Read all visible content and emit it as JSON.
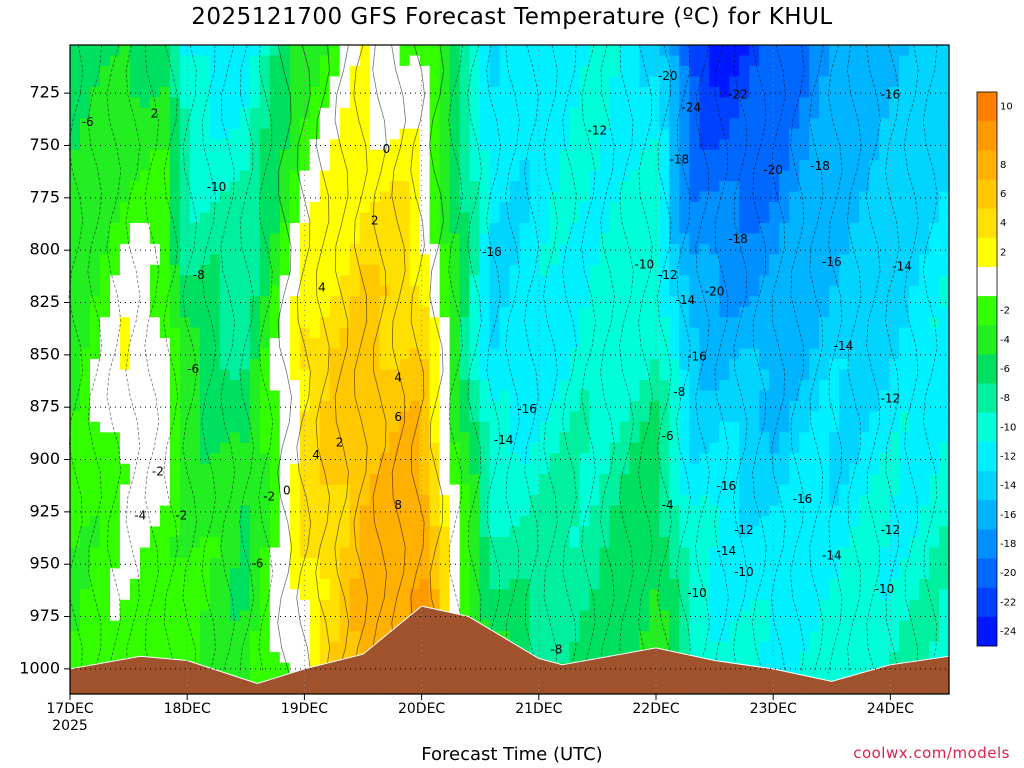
{
  "title": "2025121700 GFS Forecast Temperature (ºC) for KHUL",
  "xlabel": "Forecast Time (UTC)",
  "credit": "coolwx.com/models",
  "chart_data": {
    "type": "heatmap",
    "title": "2025121700 GFS Forecast Temperature (ºC) for KHUL",
    "xlabel": "Forecast Time (UTC)",
    "ylabel": "",
    "y_inverted": true,
    "ylim": [
      1012,
      702
    ],
    "xlim_days": [
      0,
      7.5
    ],
    "x_ticks": [
      {
        "day": 0,
        "label": "17DEC",
        "sublabel": "2025"
      },
      {
        "day": 1,
        "label": "18DEC"
      },
      {
        "day": 2,
        "label": "19DEC"
      },
      {
        "day": 3,
        "label": "20DEC"
      },
      {
        "day": 4,
        "label": "21DEC"
      },
      {
        "day": 5,
        "label": "22DEC"
      },
      {
        "day": 6,
        "label": "23DEC"
      },
      {
        "day": 7,
        "label": "24DEC"
      }
    ],
    "y_ticks": [
      725,
      750,
      775,
      800,
      825,
      850,
      875,
      900,
      925,
      950,
      975,
      1000
    ],
    "grid": true,
    "colorbar": {
      "labels": [
        "10",
        "8",
        "6",
        "4",
        "2",
        "-2",
        "-4",
        "-6",
        "-8",
        "-10",
        "-12",
        "-14",
        "-16",
        "-18",
        "-20",
        "-22",
        "-24"
      ],
      "bins": [
        {
          "color": "#ff8000",
          "label": "10"
        },
        {
          "color": "#ff9a00",
          "label": ""
        },
        {
          "color": "#ffb000",
          "label": "8"
        },
        {
          "color": "#ffc800",
          "label": "6"
        },
        {
          "color": "#ffe000",
          "label": "4"
        },
        {
          "color": "#ffff00",
          "label": "2"
        },
        {
          "color": "#ffffff",
          "label": ""
        },
        {
          "color": "#33ff00",
          "label": "-2"
        },
        {
          "color": "#22ee22",
          "label": "-4"
        },
        {
          "color": "#00e060",
          "label": "-6"
        },
        {
          "color": "#00f0a0",
          "label": "-8"
        },
        {
          "color": "#00ffd8",
          "label": "-10"
        },
        {
          "color": "#00f0ff",
          "label": "-12"
        },
        {
          "color": "#00d4ff",
          "label": "-14"
        },
        {
          "color": "#00b4ff",
          "label": "-16"
        },
        {
          "color": "#0090ff",
          "label": "-18"
        },
        {
          "color": "#0068ff",
          "label": "-20"
        },
        {
          "color": "#0040ff",
          "label": "-22"
        },
        {
          "color": "#0018ff",
          "label": "-24"
        }
      ]
    },
    "temperature_profiles": [
      {
        "day": 0.0,
        "p_top": -7,
        "p850": -5,
        "p925": -4,
        "sfc": -3
      },
      {
        "day": 0.5,
        "p_top": -7,
        "p850": 1,
        "p925": -2,
        "sfc": -3
      },
      {
        "day": 0.8,
        "p_top": -6,
        "p850": -1,
        "p925": -2,
        "sfc": -4
      },
      {
        "day": 1.0,
        "p_top": -13,
        "p850": -6,
        "p925": -4,
        "sfc": -4
      },
      {
        "day": 1.5,
        "p_top": -13,
        "p850": -8,
        "p925": -6,
        "sfc": -5
      },
      {
        "day": 2.0,
        "p_top": -5,
        "p850": 3,
        "p925": 2,
        "sfc": 0
      },
      {
        "day": 2.5,
        "p_top": 0,
        "p850": 5,
        "p925": 6,
        "sfc": 6
      },
      {
        "day": 3.0,
        "p_top": -2,
        "p850": 4,
        "p925": 8,
        "sfc": 10
      },
      {
        "day": 3.3,
        "p_top": -8,
        "p850": -6,
        "p925": -2,
        "sfc": 0
      },
      {
        "day": 3.6,
        "p_top": -14,
        "p850": -14,
        "p925": -10,
        "sfc": -4
      },
      {
        "day": 4.0,
        "p_top": -13,
        "p850": -13,
        "p925": -10,
        "sfc": -8
      },
      {
        "day": 4.5,
        "p_top": -12,
        "p850": -11,
        "p925": -9,
        "sfc": -8
      },
      {
        "day": 5.0,
        "p_top": -14,
        "p850": -10,
        "p925": -6,
        "sfc": -4
      },
      {
        "day": 5.3,
        "p_top": -23,
        "p850": -16,
        "p925": -12,
        "sfc": -10
      },
      {
        "day": 5.6,
        "p_top": -25,
        "p850": -16,
        "p925": -13,
        "sfc": -11
      },
      {
        "day": 6.0,
        "p_top": -22,
        "p850": -17,
        "p925": -14,
        "sfc": -12
      },
      {
        "day": 6.5,
        "p_top": -18,
        "p850": -15,
        "p925": -13,
        "sfc": -11
      },
      {
        "day": 7.0,
        "p_top": -16,
        "p850": -14,
        "p925": -12,
        "sfc": -10
      },
      {
        "day": 7.5,
        "p_top": -15,
        "p850": -12,
        "p925": -11,
        "sfc": -9
      }
    ],
    "surface_pressure": [
      {
        "day": 0.0,
        "p": 1000
      },
      {
        "day": 0.6,
        "p": 994
      },
      {
        "day": 1.0,
        "p": 996
      },
      {
        "day": 1.6,
        "p": 1007
      },
      {
        "day": 2.0,
        "p": 1000
      },
      {
        "day": 2.5,
        "p": 993
      },
      {
        "day": 3.0,
        "p": 970
      },
      {
        "day": 3.4,
        "p": 975
      },
      {
        "day": 4.0,
        "p": 995
      },
      {
        "day": 4.2,
        "p": 998
      },
      {
        "day": 4.7,
        "p": 993
      },
      {
        "day": 5.0,
        "p": 990
      },
      {
        "day": 5.5,
        "p": 996
      },
      {
        "day": 6.0,
        "p": 1000
      },
      {
        "day": 6.5,
        "p": 1006
      },
      {
        "day": 7.0,
        "p": 998
      },
      {
        "day": 7.5,
        "p": 994
      }
    ],
    "contour_labels": [
      {
        "day": 0.15,
        "p": 739,
        "text": "-6"
      },
      {
        "day": 0.72,
        "p": 735,
        "text": "2"
      },
      {
        "day": 1.25,
        "p": 770,
        "text": "-10"
      },
      {
        "day": 2.7,
        "p": 752,
        "text": "0"
      },
      {
        "day": 2.6,
        "p": 786,
        "text": "2"
      },
      {
        "day": 2.15,
        "p": 818,
        "text": "4"
      },
      {
        "day": 1.1,
        "p": 812,
        "text": "-8"
      },
      {
        "day": 1.05,
        "p": 857,
        "text": "-6"
      },
      {
        "day": 2.8,
        "p": 861,
        "text": "4"
      },
      {
        "day": 2.8,
        "p": 880,
        "text": "6"
      },
      {
        "day": 2.3,
        "p": 892,
        "text": "2"
      },
      {
        "day": 2.1,
        "p": 898,
        "text": "4"
      },
      {
        "day": 0.75,
        "p": 906,
        "text": "-2"
      },
      {
        "day": 0.6,
        "p": 927,
        "text": "-4"
      },
      {
        "day": 0.95,
        "p": 927,
        "text": "-2"
      },
      {
        "day": 1.7,
        "p": 918,
        "text": "-2"
      },
      {
        "day": 1.85,
        "p": 915,
        "text": "0"
      },
      {
        "day": 1.6,
        "p": 950,
        "text": "-6"
      },
      {
        "day": 2.8,
        "p": 922,
        "text": "8"
      },
      {
        "day": 3.6,
        "p": 801,
        "text": "-16"
      },
      {
        "day": 3.7,
        "p": 891,
        "text": "-14"
      },
      {
        "day": 3.9,
        "p": 876,
        "text": "-16"
      },
      {
        "day": 4.5,
        "p": 743,
        "text": "-12"
      },
      {
        "day": 5.1,
        "p": 717,
        "text": "-20"
      },
      {
        "day": 5.3,
        "p": 732,
        "text": "-24"
      },
      {
        "day": 5.7,
        "p": 726,
        "text": "-22"
      },
      {
        "day": 5.2,
        "p": 757,
        "text": "-18"
      },
      {
        "day": 6.0,
        "p": 762,
        "text": "-20"
      },
      {
        "day": 6.4,
        "p": 760,
        "text": "-18"
      },
      {
        "day": 5.7,
        "p": 795,
        "text": "-18"
      },
      {
        "day": 4.9,
        "p": 807,
        "text": "-10"
      },
      {
        "day": 5.1,
        "p": 812,
        "text": "-12"
      },
      {
        "day": 5.25,
        "p": 824,
        "text": "-14"
      },
      {
        "day": 5.5,
        "p": 820,
        "text": "-20"
      },
      {
        "day": 6.5,
        "p": 806,
        "text": "-16"
      },
      {
        "day": 7.1,
        "p": 808,
        "text": "-14"
      },
      {
        "day": 7.0,
        "p": 726,
        "text": "-16"
      },
      {
        "day": 6.6,
        "p": 846,
        "text": "-14"
      },
      {
        "day": 5.35,
        "p": 851,
        "text": "-16"
      },
      {
        "day": 5.2,
        "p": 868,
        "text": "-8"
      },
      {
        "day": 7.0,
        "p": 871,
        "text": "-12"
      },
      {
        "day": 5.1,
        "p": 889,
        "text": "-6"
      },
      {
        "day": 5.1,
        "p": 922,
        "text": "-4"
      },
      {
        "day": 5.6,
        "p": 913,
        "text": "-16"
      },
      {
        "day": 6.25,
        "p": 919,
        "text": "-16"
      },
      {
        "day": 5.75,
        "p": 934,
        "text": "-12"
      },
      {
        "day": 7.0,
        "p": 934,
        "text": "-12"
      },
      {
        "day": 5.6,
        "p": 944,
        "text": "-14"
      },
      {
        "day": 6.5,
        "p": 946,
        "text": "-14"
      },
      {
        "day": 5.75,
        "p": 954,
        "text": "-10"
      },
      {
        "day": 5.35,
        "p": 964,
        "text": "-10"
      },
      {
        "day": 6.95,
        "p": 962,
        "text": "-10"
      },
      {
        "day": 4.15,
        "p": 991,
        "text": "-8"
      }
    ]
  }
}
